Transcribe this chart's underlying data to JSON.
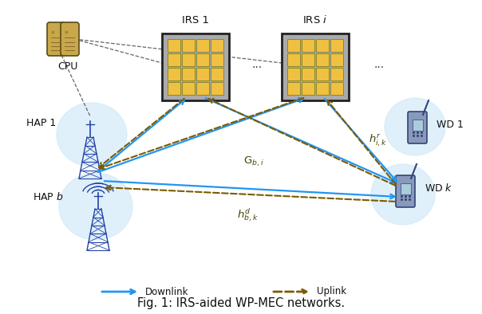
{
  "title": "Fig. 1: IRS-aided WP-MEC networks.",
  "title_fontsize": 10.5,
  "bg_color": "#ffffff",
  "irs1_label": "IRS 1",
  "irsi_label": "IRS $i$",
  "hap1_label": "HAP 1",
  "hapb_label": "HAP $b$",
  "wd1_label": "WD 1",
  "wdk_label": "WD $k$",
  "cpu_label": "CPU",
  "Gbi_label": "$\\mathrm{G}_{b,i}$",
  "hik_label": "$h_{i,k}^{r}$",
  "hbk_label": "$h_{b,k}^{d}$",
  "downlink_label": "Downlink",
  "uplink_label": "Uplink",
  "blue": "#2196F3",
  "brown": "#7A5C00",
  "hap_blue": "#2244AA",
  "irs_cell_color": "#F0C040",
  "irs_cell_edge": "#888833",
  "irs_border": "#333333",
  "irs_bg": "#AAAAAA"
}
